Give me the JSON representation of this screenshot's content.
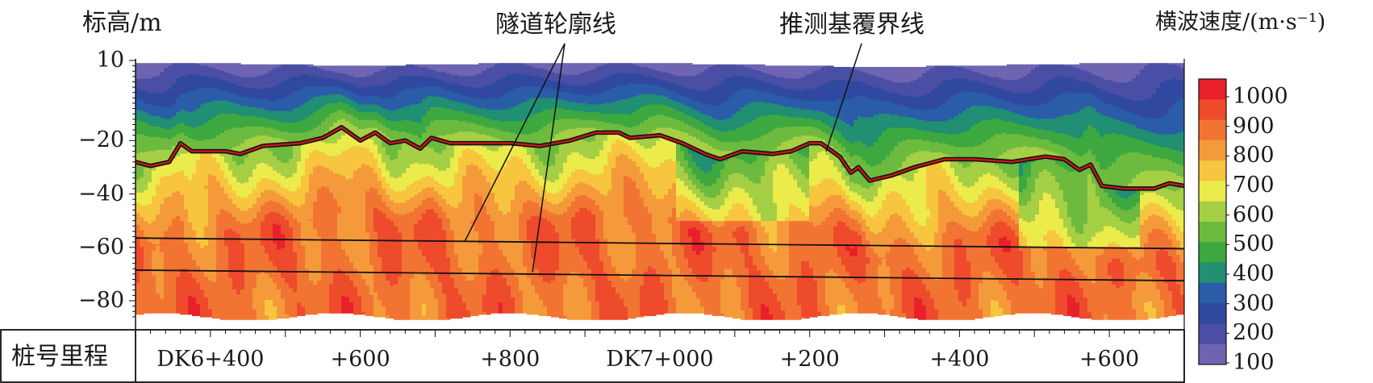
{
  "chart_data": {
    "type": "heatmap",
    "ylabel": "标高/m",
    "colorbar_label": "横波速度/(m·s⁻¹)",
    "station_row_label": "桩号里程",
    "yticks": [
      10,
      -20,
      -40,
      -60,
      -80
    ],
    "ylim": [
      10,
      -87
    ],
    "xlim": [
      6300,
      7700
    ],
    "xticks": [
      {
        "value": 6400,
        "label": "DK6+400"
      },
      {
        "value": 6600,
        "label": "+600"
      },
      {
        "value": 6800,
        "label": "+800"
      },
      {
        "value": 7000,
        "label": "DK7+000"
      },
      {
        "value": 7200,
        "label": "+200"
      },
      {
        "value": 7400,
        "label": "+400"
      },
      {
        "value": 7600,
        "label": "+600"
      }
    ],
    "colorbar": {
      "levels": [
        1000,
        900,
        800,
        700,
        600,
        500,
        400,
        300,
        200,
        100
      ],
      "colors": [
        "#e8202a",
        "#ee4a2c",
        "#f27433",
        "#f59a3b",
        "#f7c53e",
        "#eceb4c",
        "#a5cf45",
        "#6cbb3f",
        "#3ea840",
        "#218f73",
        "#2a5ca8",
        "#3049a0",
        "#4a4fa5",
        "#6e64b2"
      ]
    },
    "annotations": [
      {
        "text": "隧道轮廓线",
        "target": "tunnel_contour"
      },
      {
        "text": "推测基覆界线",
        "target": "bedrock_overburden_boundary"
      }
    ],
    "tunnel_contour": {
      "top": [
        {
          "x": 6300,
          "y": -56.5
        },
        {
          "x": 7700,
          "y": -60.5
        }
      ],
      "bottom": [
        {
          "x": 6300,
          "y": -68.5
        },
        {
          "x": 7700,
          "y": -72.5
        }
      ]
    },
    "bedrock_overburden_boundary": [
      {
        "x": 6300,
        "y": -28
      },
      {
        "x": 6320,
        "y": -29.5
      },
      {
        "x": 6345,
        "y": -28
      },
      {
        "x": 6360,
        "y": -21
      },
      {
        "x": 6375,
        "y": -24
      },
      {
        "x": 6420,
        "y": -24
      },
      {
        "x": 6440,
        "y": -25
      },
      {
        "x": 6470,
        "y": -22
      },
      {
        "x": 6520,
        "y": -21
      },
      {
        "x": 6550,
        "y": -19
      },
      {
        "x": 6575,
        "y": -15
      },
      {
        "x": 6600,
        "y": -20
      },
      {
        "x": 6620,
        "y": -17
      },
      {
        "x": 6640,
        "y": -21
      },
      {
        "x": 6660,
        "y": -20
      },
      {
        "x": 6680,
        "y": -23
      },
      {
        "x": 6695,
        "y": -19
      },
      {
        "x": 6720,
        "y": -21
      },
      {
        "x": 6800,
        "y": -21
      },
      {
        "x": 6840,
        "y": -22
      },
      {
        "x": 6880,
        "y": -20
      },
      {
        "x": 6915,
        "y": -17
      },
      {
        "x": 6945,
        "y": -17
      },
      {
        "x": 6960,
        "y": -19
      },
      {
        "x": 7000,
        "y": -18
      },
      {
        "x": 7030,
        "y": -21
      },
      {
        "x": 7060,
        "y": -25
      },
      {
        "x": 7080,
        "y": -27
      },
      {
        "x": 7110,
        "y": -24
      },
      {
        "x": 7150,
        "y": -25
      },
      {
        "x": 7175,
        "y": -24
      },
      {
        "x": 7200,
        "y": -21
      },
      {
        "x": 7215,
        "y": -21
      },
      {
        "x": 7240,
        "y": -26
      },
      {
        "x": 7255,
        "y": -32
      },
      {
        "x": 7265,
        "y": -30
      },
      {
        "x": 7280,
        "y": -35
      },
      {
        "x": 7310,
        "y": -33
      },
      {
        "x": 7340,
        "y": -30
      },
      {
        "x": 7380,
        "y": -27
      },
      {
        "x": 7420,
        "y": -27
      },
      {
        "x": 7470,
        "y": -28
      },
      {
        "x": 7515,
        "y": -26
      },
      {
        "x": 7540,
        "y": -27
      },
      {
        "x": 7560,
        "y": -31
      },
      {
        "x": 7575,
        "y": -29
      },
      {
        "x": 7590,
        "y": -37
      },
      {
        "x": 7620,
        "y": -38
      },
      {
        "x": 7660,
        "y": -38
      },
      {
        "x": 7680,
        "y": -36
      },
      {
        "x": 7700,
        "y": -37
      }
    ],
    "top_surface": [
      {
        "x": 6300,
        "y": 9
      },
      {
        "x": 6400,
        "y": 9
      },
      {
        "x": 6600,
        "y": 8
      },
      {
        "x": 6800,
        "y": 9
      },
      {
        "x": 7000,
        "y": 9
      },
      {
        "x": 7200,
        "y": 8
      },
      {
        "x": 7280,
        "y": 7.5
      },
      {
        "x": 7400,
        "y": 8
      },
      {
        "x": 7600,
        "y": 9
      },
      {
        "x": 7700,
        "y": 9
      }
    ]
  }
}
